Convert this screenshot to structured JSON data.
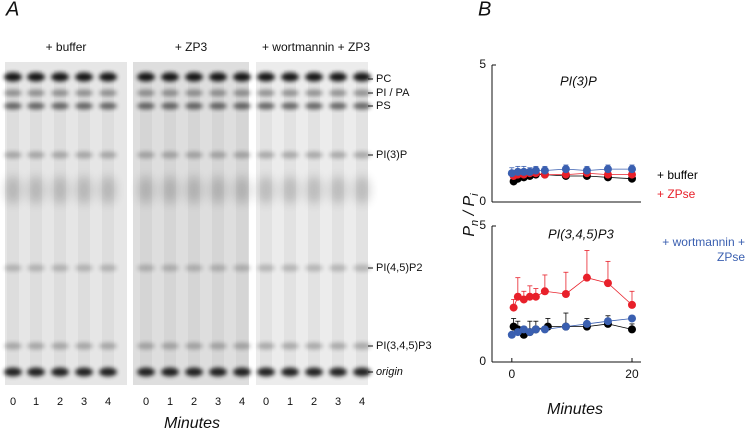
{
  "panel_a": {
    "letter": "A",
    "groups": [
      "+ buffer",
      "+ ZP3",
      "+ wortmannin + ZP3"
    ],
    "bands": [
      "PC",
      "PI / PA",
      "PS",
      "PI(3)P",
      "PI(4,5)P2",
      "PI(3,4,5)P3",
      "origin"
    ],
    "lanes": [
      0,
      1,
      2,
      3,
      4
    ],
    "xlabel": "Minutes"
  },
  "panel_b": {
    "letter": "B",
    "ylabel": [
      "P",
      "n",
      " / P",
      "i"
    ],
    "xlabel": "Minutes"
  },
  "chart_data": [
    {
      "type": "scatter",
      "title": "PI(3)P",
      "xlim": [
        -3.3,
        21.5
      ],
      "ylim": [
        0,
        5
      ],
      "yticks": [
        0,
        5
      ],
      "series": [
        {
          "name": "+ buffer",
          "color": "#000000",
          "x": [
            0.3,
            1,
            2,
            3,
            4,
            5.5,
            9,
            12.5,
            16,
            20
          ],
          "values": [
            0.75,
            0.85,
            0.9,
            0.95,
            1.0,
            1.0,
            0.95,
            0.95,
            0.9,
            0.85
          ],
          "errors": [
            0.15,
            0.15,
            0.15,
            0.15,
            0.15,
            0.1,
            0.1,
            0.1,
            0.1,
            0.1
          ]
        },
        {
          "name": "+ ZPse",
          "color": "#e8202a",
          "x": [
            0.3,
            1,
            2,
            3,
            4,
            5.5,
            9,
            12.5,
            16,
            20
          ],
          "values": [
            0.95,
            1.0,
            1.0,
            1.05,
            1.05,
            1.0,
            1.0,
            1.05,
            1.0,
            1.0
          ],
          "errors": [
            0.2,
            0.2,
            0.15,
            0.15,
            0.15,
            0.15,
            0.15,
            0.15,
            0.15,
            0.15
          ]
        },
        {
          "name": "+ wortmannin + ZPse",
          "color": "#3a5fb0",
          "x": [
            0,
            1,
            2,
            3,
            4,
            5.5,
            9,
            12.5,
            16,
            20
          ],
          "values": [
            1.05,
            1.1,
            1.1,
            1.1,
            1.15,
            1.15,
            1.2,
            1.15,
            1.2,
            1.2
          ],
          "errors": [
            0.2,
            0.2,
            0.2,
            0.15,
            0.15,
            0.15,
            0.15,
            0.15,
            0.15,
            0.15
          ]
        }
      ]
    },
    {
      "type": "scatter",
      "title": "PI(3,4,5)P3",
      "xlim": [
        -3.3,
        21.5
      ],
      "ylim": [
        0,
        5
      ],
      "yticks": [
        0,
        5
      ],
      "xticks": [
        0,
        20
      ],
      "series": [
        {
          "color": "#000000",
          "x": [
            0.3,
            1,
            2,
            3,
            4,
            6,
            9,
            12.5,
            16,
            20
          ],
          "values": [
            1.3,
            1.2,
            1.0,
            1.1,
            1.2,
            1.3,
            1.3,
            1.3,
            1.4,
            1.2
          ],
          "errors": [
            0.3,
            0.3,
            0.3,
            0.4,
            0.3,
            0.3,
            0.5,
            0.3,
            0.3,
            0.2
          ]
        },
        {
          "color": "#e8202a",
          "x": [
            0.3,
            1,
            2,
            3,
            4,
            5.5,
            9,
            12.5,
            16,
            20
          ],
          "values": [
            2.0,
            2.4,
            2.3,
            2.4,
            2.4,
            2.6,
            2.5,
            3.1,
            2.9,
            2.1
          ],
          "errors": [
            0.3,
            0.7,
            0.3,
            0.4,
            0.3,
            0.6,
            0.8,
            1.0,
            0.8,
            0.5
          ]
        },
        {
          "color": "#3a5fb0",
          "x": [
            0,
            1,
            2,
            3,
            4,
            5.5,
            9,
            12.5,
            16,
            20
          ],
          "values": [
            1.0,
            1.1,
            1.2,
            1.1,
            1.2,
            1.2,
            1.3,
            1.4,
            1.5,
            1.6
          ],
          "errors": [
            0.1,
            0.1,
            0.1,
            0.1,
            0.1,
            0.1,
            0.1,
            0.1,
            0.1,
            0.1
          ]
        }
      ]
    }
  ]
}
